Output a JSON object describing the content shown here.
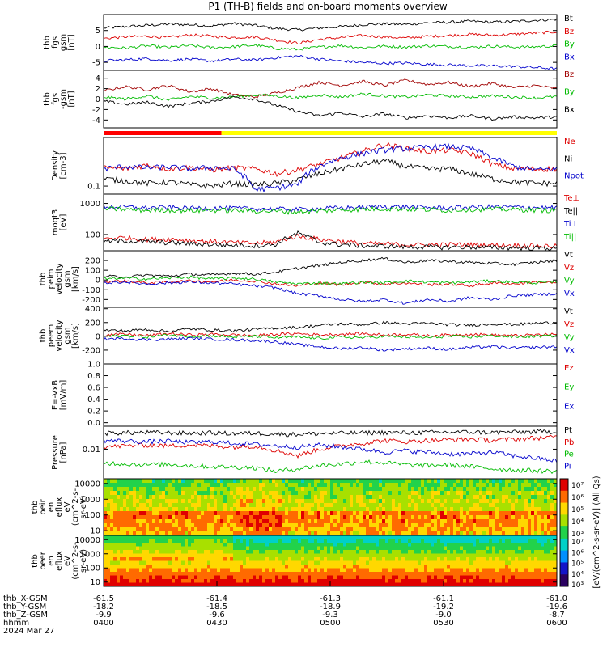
{
  "chart_data": {
    "type": "line",
    "title": "P1 (TH-B) fields and on-board moments overview",
    "panels": [
      {
        "ylabel": [
          "thb",
          "fgs",
          "gsm",
          "[nT]"
        ],
        "ylog": false,
        "yticks": [
          "5",
          "0",
          "-5"
        ],
        "ylim": [
          -7.5,
          10
        ],
        "series": [
          {
            "name": "Bt",
            "color": "#000000",
            "values": [
              5.8,
              6.2,
              6.6,
              7.0,
              6.8,
              6.4,
              7.2,
              6.6,
              5.6,
              5.2,
              5.8,
              6.2,
              6.8,
              7.1,
              6.9,
              7.4,
              7.6,
              7.9,
              7.6,
              7.8,
              8.2,
              8.5
            ]
          },
          {
            "name": "Bz",
            "color": "#dd0000",
            "values": [
              2.5,
              3.0,
              3.2,
              2.8,
              3.6,
              3.2,
              2.8,
              3.0,
              2.0,
              1.0,
              2.2,
              2.8,
              3.4,
              3.0,
              2.6,
              3.2,
              3.4,
              3.8,
              3.5,
              3.8,
              4.2,
              4.6
            ]
          },
          {
            "name": "By",
            "color": "#00bb00",
            "values": [
              -0.2,
              -0.5,
              0.2,
              -0.3,
              0.3,
              -0.4,
              -0.1,
              0.4,
              -0.6,
              -0.9,
              -0.2,
              0.3,
              -0.4,
              0.1,
              -0.2,
              0.2,
              0.0,
              -0.3,
              0.1,
              -0.2,
              -0.1,
              0.2
            ]
          },
          {
            "name": "Bx",
            "color": "#0000cc",
            "values": [
              -4.5,
              -4.2,
              -3.8,
              -4.4,
              -4.0,
              -4.6,
              -4.0,
              -4.3,
              -3.5,
              -3.0,
              -4.0,
              -4.6,
              -5.0,
              -5.3,
              -5.2,
              -5.6,
              -5.8,
              -6.0,
              -6.1,
              -6.3,
              -6.6,
              -7.0
            ]
          }
        ]
      },
      {
        "ylabel": [
          "thb",
          "fgs",
          "-gsm",
          "[nT]"
        ],
        "ylog": false,
        "yticks": [
          "4",
          "2",
          "0",
          "-2",
          "-4"
        ],
        "ylim": [
          -5.5,
          5.5
        ],
        "series": [
          {
            "name": "Bz",
            "color": "#a00000",
            "values": [
              1.6,
              2.4,
              1.8,
              2.6,
              1.4,
              2.0,
              0.8,
              0.4,
              1.2,
              2.2,
              3.2,
              2.6,
              3.4,
              2.6,
              3.6,
              2.8,
              3.2,
              2.4,
              3.0,
              2.2,
              2.6,
              2.0
            ]
          },
          {
            "name": "By",
            "color": "#00bb00",
            "values": [
              0.4,
              0.0,
              0.6,
              -0.2,
              0.5,
              0.2,
              0.4,
              0.8,
              0.6,
              0.2,
              0.8,
              0.4,
              1.0,
              0.6,
              0.4,
              0.8,
              0.6,
              0.4,
              0.6,
              0.4,
              0.2,
              0.5
            ]
          },
          {
            "name": "Bx",
            "color": "#000000",
            "values": [
              -0.4,
              -1.0,
              -0.6,
              -1.4,
              -0.8,
              -0.4,
              0.4,
              0.0,
              -1.2,
              -2.4,
              -3.2,
              -2.6,
              -3.4,
              -2.8,
              -3.6,
              -3.2,
              -3.6,
              -3.2,
              -3.8,
              -3.4,
              -3.6,
              -3.4
            ]
          }
        ]
      },
      {
        "ylabel": [
          "Density",
          "[cm-3]"
        ],
        "ylog": true,
        "yticks": [
          "0.1"
        ],
        "ylim": [
          0.06,
          2.2
        ],
        "series": [
          {
            "name": "Ne",
            "color": "#dd0000",
            "values": [
              0.32,
              0.3,
              0.38,
              0.3,
              0.33,
              0.28,
              0.32,
              0.3,
              0.22,
              0.28,
              0.4,
              0.6,
              0.9,
              1.4,
              1.1,
              0.9,
              1.0,
              0.8,
              0.4,
              0.3,
              0.3,
              0.3
            ]
          },
          {
            "name": "Ni",
            "color": "#000000",
            "values": [
              0.16,
              0.14,
              0.12,
              0.13,
              0.11,
              0.1,
              0.12,
              0.11,
              0.12,
              0.15,
              0.22,
              0.3,
              0.4,
              0.5,
              0.35,
              0.3,
              0.3,
              0.22,
              0.16,
              0.13,
              0.12,
              0.12
            ]
          },
          {
            "name": "Npot",
            "color": "#0000cc",
            "values": [
              0.3,
              0.35,
              0.32,
              0.34,
              0.3,
              0.33,
              0.3,
              0.08,
              0.09,
              0.11,
              0.35,
              0.6,
              0.8,
              1.0,
              1.1,
              1.2,
              1.25,
              1.1,
              0.6,
              0.35,
              0.28,
              0.3
            ]
          }
        ]
      },
      {
        "ylabel": [
          "moqt3",
          "[eV]"
        ],
        "ylog": true,
        "yticks": [
          "1000",
          "100"
        ],
        "ylim": [
          30,
          2000
        ],
        "series": [
          {
            "name": "Te⊥",
            "color": "#dd0000",
            "values": [
              75,
              80,
              70,
              72,
              65,
              60,
              55,
              52,
              58,
              90,
              70,
              60,
              52,
              50,
              48,
              46,
              48,
              47,
              46,
              45,
              44,
              42
            ]
          },
          {
            "name": "Te||",
            "color": "#000000",
            "values": [
              60,
              62,
              58,
              55,
              50,
              48,
              45,
              44,
              48,
              110,
              55,
              48,
              44,
              42,
              40,
              40,
              39,
              40,
              38,
              38,
              37,
              36
            ]
          },
          {
            "name": "Ti⊥",
            "color": "#0000cc",
            "values": [
              800,
              760,
              720,
              740,
              700,
              720,
              700,
              680,
              660,
              640,
              680,
              720,
              760,
              800,
              780,
              740,
              720,
              760,
              780,
              760,
              740,
              720
            ]
          },
          {
            "name": "Ti||",
            "color": "#00bb00",
            "values": [
              680,
              640,
              600,
              620,
              590,
              610,
              600,
              580,
              560,
              540,
              580,
              620,
              650,
              680,
              660,
              630,
              610,
              650,
              660,
              640,
              620,
              600
            ]
          }
        ]
      },
      {
        "ylabel": [
          "thb",
          "peim",
          "velocity",
          "gsm",
          "[km/s]"
        ],
        "ylog": false,
        "yticks": [
          "200",
          "100",
          "0",
          "-100",
          "-200"
        ],
        "ylim": [
          -280,
          300
        ],
        "series": [
          {
            "name": "Vt",
            "color": "#000000",
            "values": [
              40,
              30,
              50,
              40,
              60,
              50,
              70,
              60,
              80,
              120,
              150,
              180,
              200,
              220,
              180,
              200,
              190,
              180,
              170,
              160,
              180,
              200
            ]
          },
          {
            "name": "Vz",
            "color": "#dd0000",
            "values": [
              -20,
              -10,
              -30,
              -20,
              -10,
              -20,
              0,
              -10,
              -40,
              -60,
              -30,
              -50,
              -20,
              -40,
              -30,
              -50,
              -40,
              -60,
              -30,
              -40,
              -20,
              -30
            ]
          },
          {
            "name": "Vy",
            "color": "#00bb00",
            "values": [
              10,
              20,
              10,
              20,
              30,
              10,
              20,
              10,
              -20,
              -40,
              -30,
              -40,
              -20,
              -30,
              -10,
              -20,
              -30,
              -20,
              -10,
              -20,
              -30,
              -20
            ]
          },
          {
            "name": "Vx",
            "color": "#0000cc",
            "values": [
              -30,
              -20,
              -40,
              -30,
              -20,
              -30,
              -40,
              -60,
              -80,
              -140,
              -160,
              -200,
              -220,
              -200,
              -240,
              -200,
              -220,
              -180,
              -200,
              -160,
              -150,
              -140
            ]
          }
        ]
      },
      {
        "ylabel": [
          "thb",
          "peem",
          "velocity",
          "gsm",
          "[km/s]"
        ],
        "ylog": false,
        "yticks": [
          "400",
          "200",
          "0",
          "-200"
        ],
        "ylim": [
          -400,
          420
        ],
        "series": [
          {
            "name": "Vt",
            "color": "#000000",
            "values": [
              90,
              80,
              100,
              70,
              110,
              90,
              80,
              100,
              120,
              130,
              160,
              180,
              170,
              200,
              180,
              190,
              170,
              160,
              180,
              170,
              190,
              200
            ]
          },
          {
            "name": "Vz",
            "color": "#dd0000",
            "values": [
              20,
              30,
              10,
              40,
              20,
              30,
              20,
              10,
              30,
              40,
              20,
              30,
              40,
              20,
              30,
              10,
              20,
              30,
              20,
              10,
              20,
              30
            ]
          },
          {
            "name": "Vy",
            "color": "#00bb00",
            "values": [
              0,
              10,
              -10,
              20,
              0,
              10,
              -10,
              0,
              -20,
              -10,
              -30,
              -10,
              -20,
              0,
              -10,
              -20,
              0,
              -10,
              10,
              -10,
              0,
              10
            ]
          },
          {
            "name": "Vx",
            "color": "#0000cc",
            "values": [
              -40,
              -30,
              -50,
              -40,
              -30,
              -40,
              -50,
              -60,
              -80,
              -120,
              -150,
              -180,
              -160,
              -200,
              -180,
              -170,
              -190,
              -160,
              -150,
              -170,
              -160,
              -150
            ]
          }
        ]
      },
      {
        "ylabel": [
          "E=-VxB",
          "[mV/m]"
        ],
        "ylog": false,
        "yticks": [
          "1.0",
          "0.8",
          "0.6",
          "0.4",
          "0.2",
          "0.0"
        ],
        "ylim": [
          -0.06,
          1.0
        ],
        "series": [
          {
            "name": "Ez",
            "color": "#dd0000",
            "values": []
          },
          {
            "name": "Ey",
            "color": "#00bb00",
            "values": []
          },
          {
            "name": "Ex",
            "color": "#0000cc",
            "values": []
          }
        ]
      },
      {
        "ylabel": [
          "Pressure",
          "[nPa]"
        ],
        "ylog": true,
        "yticks": [
          "0.01"
        ],
        "ylim": [
          0.001,
          0.06
        ],
        "series": [
          {
            "name": "Pt",
            "color": "#000000",
            "values": [
              0.035,
              0.036,
              0.037,
              0.036,
              0.035,
              0.036,
              0.034,
              0.035,
              0.033,
              0.032,
              0.034,
              0.035,
              0.036,
              0.037,
              0.036,
              0.037,
              0.038,
              0.038,
              0.037,
              0.038,
              0.039,
              0.04
            ]
          },
          {
            "name": "Pb",
            "color": "#dd0000",
            "values": [
              0.012,
              0.013,
              0.014,
              0.013,
              0.014,
              0.013,
              0.012,
              0.013,
              0.009,
              0.006,
              0.01,
              0.013,
              0.016,
              0.02,
              0.018,
              0.02,
              0.021,
              0.022,
              0.02,
              0.022,
              0.024,
              0.026
            ]
          },
          {
            "name": "Pe",
            "color": "#00bb00",
            "values": [
              0.0035,
              0.0032,
              0.003,
              0.0031,
              0.0028,
              0.0026,
              0.0025,
              0.0024,
              0.0018,
              0.0022,
              0.0028,
              0.0032,
              0.0038,
              0.0035,
              0.003,
              0.0028,
              0.003,
              0.0026,
              0.0022,
              0.002,
              0.0019,
              0.0018
            ]
          },
          {
            "name": "Pi",
            "color": "#0000cc",
            "values": [
              0.02,
              0.019,
              0.018,
              0.019,
              0.017,
              0.018,
              0.016,
              0.015,
              0.013,
              0.012,
              0.014,
              0.012,
              0.01,
              0.008,
              0.009,
              0.008,
              0.007,
              0.007,
              0.008,
              0.006,
              0.005,
              0.004
            ]
          }
        ]
      },
      {
        "ylabel": [
          "thb",
          "peir",
          "en",
          "eflux",
          "eV",
          "(cm^2-s-",
          "sr-eV)"
        ],
        "ylog": true,
        "yticks": [
          "10000",
          "1000",
          "100",
          "10"
        ],
        "ylim": [
          5,
          20000
        ],
        "type": "heatmap"
      },
      {
        "ylabel": [
          "thb",
          "peer",
          "en",
          "eflux",
          "eV",
          "(cm^2-s-",
          "sr-eV)"
        ],
        "ylog": true,
        "yticks": [
          "10000",
          "1000",
          "100",
          "10"
        ],
        "ylim": [
          5,
          20000
        ],
        "type": "heatmap"
      }
    ],
    "colorbar": {
      "label": "[eV/(cm^2-s-sr-eV)] (All Qs)",
      "ticks": [
        "10⁷",
        "10⁶",
        "10⁵",
        "10⁴",
        "10³"
      ],
      "colors": [
        "#ffffff",
        "#e00000",
        "#ff6a00",
        "#ffd800",
        "#a8e000",
        "#22d24b",
        "#00d0c8",
        "#0090ff",
        "#1414c8",
        "#2a0060"
      ]
    },
    "xaxis": {
      "rows": [
        {
          "label": "thb_X-GSM",
          "values": [
            "-61.5",
            "-61.4",
            "-61.3",
            "-61.1",
            "-61.0"
          ]
        },
        {
          "label": "thb_Y-GSM",
          "values": [
            "-18.2",
            "-18.5",
            "-18.9",
            "-19.2",
            "-19.6"
          ]
        },
        {
          "label": "thb_Z-GSM",
          "values": [
            "-9.9",
            "-9.6",
            "-9.3",
            "-9.0",
            "-8.7"
          ]
        },
        {
          "label": "hhmm",
          "values": [
            "0400",
            "0430",
            "0500",
            "0530",
            "0600"
          ]
        }
      ],
      "date": "2024 Mar 27"
    },
    "mode_bar": {
      "segments": [
        {
          "color": "#ff0000",
          "from": 0,
          "to": 0.26
        },
        {
          "color": "#ffff00",
          "from": 0.26,
          "to": 1
        }
      ]
    }
  }
}
